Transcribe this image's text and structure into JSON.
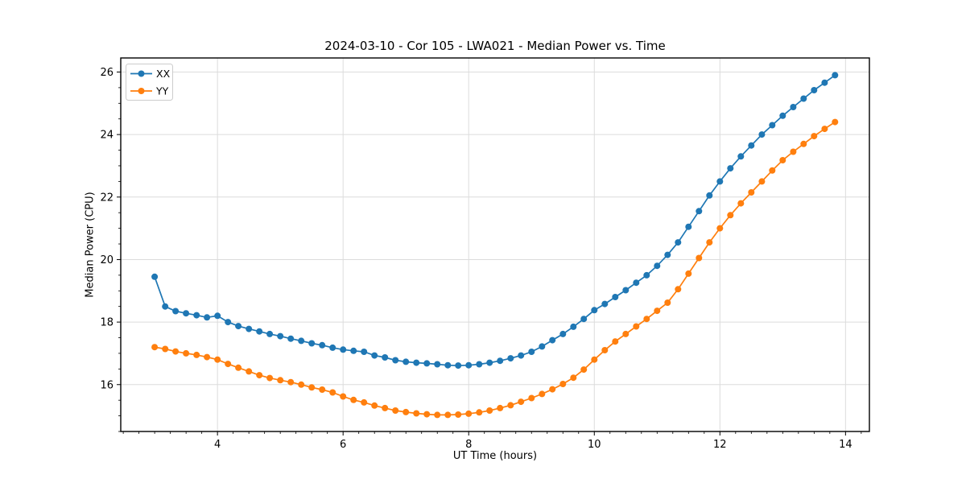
{
  "figure": {
    "background": "#ffffff"
  },
  "chart_data": {
    "type": "line",
    "title": "2024-03-10 - Cor 105 - LWA021 - Median Power vs. Time",
    "xlabel": "UT Time (hours)",
    "ylabel": "Median Power (CPU)",
    "x": [
      3.0,
      3.167,
      3.333,
      3.5,
      3.667,
      3.833,
      4.0,
      4.167,
      4.333,
      4.5,
      4.667,
      4.833,
      5.0,
      5.167,
      5.333,
      5.5,
      5.667,
      5.833,
      6.0,
      6.167,
      6.333,
      6.5,
      6.667,
      6.833,
      7.0,
      7.167,
      7.333,
      7.5,
      7.667,
      7.833,
      8.0,
      8.167,
      8.333,
      8.5,
      8.667,
      8.833,
      9.0,
      9.167,
      9.333,
      9.5,
      9.667,
      9.833,
      10.0,
      10.167,
      10.333,
      10.5,
      10.667,
      10.833,
      11.0,
      11.167,
      11.333,
      11.5,
      11.667,
      11.833,
      12.0,
      12.167,
      12.333,
      12.5,
      12.667,
      12.833,
      13.0,
      13.167,
      13.333,
      13.5,
      13.667,
      13.833
    ],
    "series": [
      {
        "name": "XX",
        "color": "#1f77b4",
        "values": [
          19.45,
          18.5,
          18.35,
          18.28,
          18.22,
          18.15,
          18.2,
          18.0,
          17.87,
          17.78,
          17.7,
          17.62,
          17.55,
          17.47,
          17.4,
          17.32,
          17.26,
          17.18,
          17.12,
          17.08,
          17.05,
          16.93,
          16.87,
          16.78,
          16.73,
          16.7,
          16.68,
          16.65,
          16.62,
          16.61,
          16.62,
          16.65,
          16.7,
          16.76,
          16.84,
          16.93,
          17.05,
          17.22,
          17.42,
          17.62,
          17.85,
          18.1,
          18.38,
          18.58,
          18.8,
          19.02,
          19.26,
          19.5,
          19.8,
          20.15,
          20.55,
          21.05,
          21.55,
          22.05,
          22.5,
          22.92,
          23.3,
          23.65,
          24.0,
          24.3,
          24.6,
          24.88,
          25.15,
          25.42,
          25.66,
          25.9
        ]
      },
      {
        "name": "YY",
        "color": "#ff7f0e",
        "values": [
          17.2,
          17.14,
          17.06,
          17.0,
          16.95,
          16.88,
          16.8,
          16.66,
          16.54,
          16.42,
          16.3,
          16.21,
          16.14,
          16.08,
          16.0,
          15.91,
          15.84,
          15.75,
          15.62,
          15.51,
          15.43,
          15.33,
          15.25,
          15.17,
          15.12,
          15.08,
          15.05,
          15.03,
          15.03,
          15.04,
          15.07,
          15.11,
          15.17,
          15.25,
          15.34,
          15.45,
          15.57,
          15.7,
          15.85,
          16.02,
          16.22,
          16.48,
          16.8,
          17.1,
          17.38,
          17.62,
          17.86,
          18.1,
          18.36,
          18.62,
          19.05,
          19.55,
          20.05,
          20.55,
          21.0,
          21.42,
          21.8,
          22.15,
          22.5,
          22.85,
          23.18,
          23.45,
          23.7,
          23.95,
          24.18,
          24.4
        ]
      }
    ],
    "xlim": [
      2.46,
      14.38
    ],
    "ylim": [
      14.5,
      26.45
    ],
    "x_ticks": [
      4,
      6,
      8,
      10,
      12,
      14
    ],
    "y_ticks": [
      16,
      18,
      20,
      22,
      24,
      26
    ],
    "x_minor_step": 0.25,
    "y_minor_step": 0.5,
    "grid": true,
    "grid_color": "#dcdcdc",
    "spine_color": "#000000",
    "tick_color": "#000000",
    "legend_position": "upper left",
    "marker": "circle"
  }
}
